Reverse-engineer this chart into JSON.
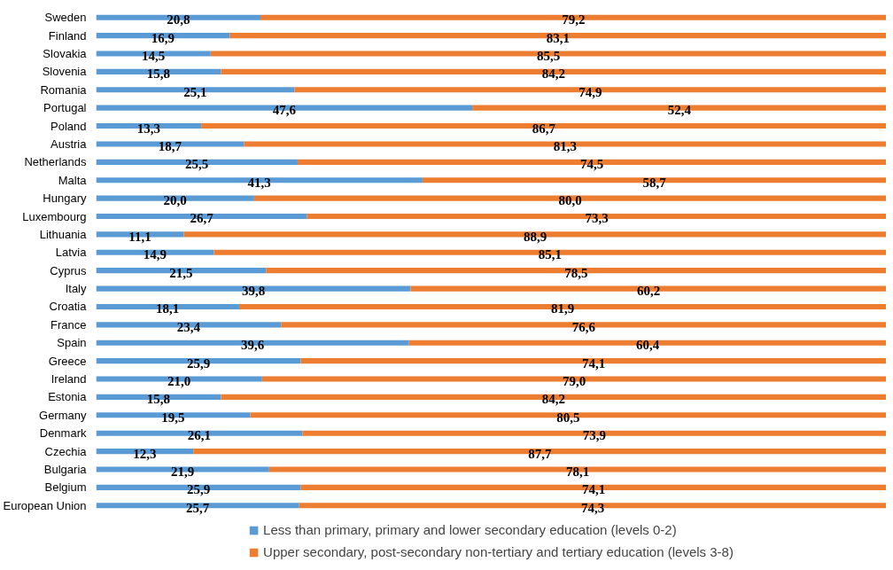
{
  "chart_data": {
    "type": "bar",
    "orientation": "horizontal",
    "stacked": true,
    "categories": [
      "Sweden",
      "Finland",
      "Slovakia",
      "Slovenia",
      "Romania",
      "Portugal",
      "Poland",
      "Austria",
      "Netherlands",
      "Malta",
      "Hungary",
      "Luxembourg",
      "Lithuania",
      "Latvia",
      "Cyprus",
      "Italy",
      "Croatia",
      "France",
      "Spain",
      "Greece",
      "Ireland",
      "Estonia",
      "Germany",
      "Denmark",
      "Czechia",
      "Bulgaria",
      "Belgium",
      "European Union"
    ],
    "series": [
      {
        "name": "Less than primary, primary and lower secondary education (levels 0-2)",
        "color": "#5b9bd5",
        "values": [
          20.8,
          16.9,
          14.5,
          15.8,
          25.1,
          47.6,
          13.3,
          18.7,
          25.5,
          41.3,
          20.0,
          26.7,
          11.1,
          14.9,
          21.5,
          39.8,
          18.1,
          23.4,
          39.6,
          25.9,
          21.0,
          15.8,
          19.5,
          26.1,
          12.3,
          21.9,
          25.9,
          25.7
        ],
        "value_labels": [
          "20,8",
          "16,9",
          "14,5",
          "15,8",
          "25,1",
          "47,6",
          "13,3",
          "18,7",
          "25,5",
          "41,3",
          "20,0",
          "26,7",
          "11,1",
          "14,9",
          "21,5",
          "39,8",
          "18,1",
          "23,4",
          "39,6",
          "25,9",
          "21,0",
          "15,8",
          "19,5",
          "26,1",
          "12,3",
          "21,9",
          "25,9",
          "25,7"
        ]
      },
      {
        "name": "Upper secondary, post-secondary non-tertiary and tertiary education (levels 3-8)",
        "color": "#ed7d31",
        "values": [
          79.2,
          83.1,
          85.5,
          84.2,
          74.9,
          52.4,
          86.7,
          81.3,
          74.5,
          58.7,
          80.0,
          73.3,
          88.9,
          85.1,
          78.5,
          60.2,
          81.9,
          76.6,
          60.4,
          74.1,
          79.0,
          84.2,
          80.5,
          73.9,
          87.7,
          78.1,
          74.1,
          74.3
        ],
        "value_labels": [
          "79,2",
          "83,1",
          "85,5",
          "84,2",
          "74,9",
          "52,4",
          "86,7",
          "81,3",
          "74,5",
          "58,7",
          "80,0",
          "73,3",
          "88,9",
          "85,1",
          "78,5",
          "60,2",
          "81,9",
          "76,6",
          "60,4",
          "74,1",
          "79,0",
          "84,2",
          "80,5",
          "73,9",
          "87,7",
          "78,1",
          "74,1",
          "74,3"
        ]
      }
    ],
    "xlim": [
      0,
      100
    ],
    "tick_labels": "y",
    "grid": false,
    "legend": "bottom"
  }
}
